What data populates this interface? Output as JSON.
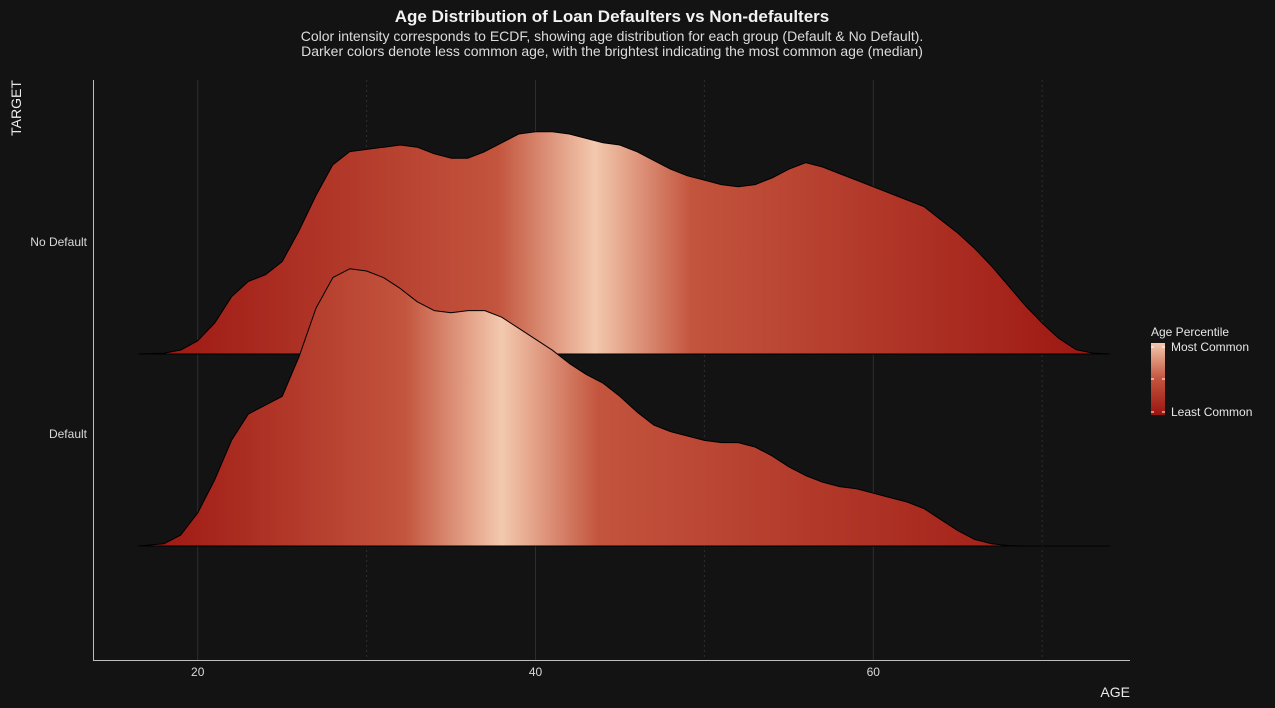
{
  "chart_data": {
    "type": "area",
    "subtype": "ridgeline",
    "title": "Age Distribution of Loan Defaulters vs Non-defaulters",
    "subtitle": [
      "Color intensity corresponds to ECDF, showing age distribution for each group (Default & No Default).",
      "Darker colors denote less common age, with the brightest indicating the most common age (median)"
    ],
    "xlabel": "AGE",
    "ylabel": "TARGET",
    "xlim": [
      13.8,
      75.2
    ],
    "x_ticks": [
      20,
      40,
      60
    ],
    "x_minor_gridlines": [
      30,
      50,
      70
    ],
    "grid": true,
    "categories": [
      "No Default",
      "Default"
    ],
    "series": [
      {
        "name": "No Default",
        "median": 43.5,
        "points": [
          [
            16.5,
            0.0
          ],
          [
            18,
            0.003
          ],
          [
            19,
            0.018
          ],
          [
            20,
            0.06
          ],
          [
            21,
            0.14
          ],
          [
            22,
            0.26
          ],
          [
            23,
            0.33
          ],
          [
            24,
            0.36
          ],
          [
            25,
            0.42
          ],
          [
            26,
            0.56
          ],
          [
            27,
            0.72
          ],
          [
            28,
            0.86
          ],
          [
            29,
            0.92
          ],
          [
            30,
            0.93
          ],
          [
            31,
            0.94
          ],
          [
            32,
            0.95
          ],
          [
            33,
            0.94
          ],
          [
            34,
            0.91
          ],
          [
            35,
            0.89
          ],
          [
            36,
            0.89
          ],
          [
            37,
            0.92
          ],
          [
            38,
            0.96
          ],
          [
            39,
            1.0
          ],
          [
            40,
            1.01
          ],
          [
            41,
            1.01
          ],
          [
            42,
            1.0
          ],
          [
            43,
            0.98
          ],
          [
            44,
            0.96
          ],
          [
            45,
            0.95
          ],
          [
            46,
            0.92
          ],
          [
            47,
            0.88
          ],
          [
            48,
            0.84
          ],
          [
            49,
            0.81
          ],
          [
            50,
            0.79
          ],
          [
            51,
            0.77
          ],
          [
            52,
            0.76
          ],
          [
            53,
            0.77
          ],
          [
            54,
            0.8
          ],
          [
            55,
            0.84
          ],
          [
            56,
            0.87
          ],
          [
            57,
            0.85
          ],
          [
            58,
            0.82
          ],
          [
            59,
            0.79
          ],
          [
            60,
            0.76
          ],
          [
            61,
            0.73
          ],
          [
            62,
            0.7
          ],
          [
            63,
            0.67
          ],
          [
            64,
            0.61
          ],
          [
            65,
            0.55
          ],
          [
            66,
            0.48
          ],
          [
            67,
            0.4
          ],
          [
            68,
            0.31
          ],
          [
            69,
            0.22
          ],
          [
            70,
            0.14
          ],
          [
            71,
            0.07
          ],
          [
            72,
            0.02
          ],
          [
            73,
            0.004
          ],
          [
            74,
            0.0
          ]
        ]
      },
      {
        "name": "Default",
        "median": 38,
        "points": [
          [
            16.5,
            0.0
          ],
          [
            18,
            0.01
          ],
          [
            19,
            0.05
          ],
          [
            20,
            0.15
          ],
          [
            21,
            0.3
          ],
          [
            22,
            0.48
          ],
          [
            23,
            0.6
          ],
          [
            24,
            0.64
          ],
          [
            25,
            0.68
          ],
          [
            26,
            0.86
          ],
          [
            27,
            1.08
          ],
          [
            28,
            1.22
          ],
          [
            29,
            1.26
          ],
          [
            30,
            1.25
          ],
          [
            31,
            1.22
          ],
          [
            32,
            1.17
          ],
          [
            33,
            1.11
          ],
          [
            34,
            1.07
          ],
          [
            35,
            1.06
          ],
          [
            36,
            1.07
          ],
          [
            37,
            1.07
          ],
          [
            38,
            1.04
          ],
          [
            39,
            0.99
          ],
          [
            40,
            0.94
          ],
          [
            41,
            0.89
          ],
          [
            42,
            0.83
          ],
          [
            43,
            0.78
          ],
          [
            44,
            0.74
          ],
          [
            45,
            0.68
          ],
          [
            46,
            0.61
          ],
          [
            47,
            0.55
          ],
          [
            48,
            0.52
          ],
          [
            49,
            0.5
          ],
          [
            50,
            0.48
          ],
          [
            51,
            0.47
          ],
          [
            52,
            0.47
          ],
          [
            53,
            0.45
          ],
          [
            54,
            0.41
          ],
          [
            55,
            0.36
          ],
          [
            56,
            0.32
          ],
          [
            57,
            0.29
          ],
          [
            58,
            0.27
          ],
          [
            59,
            0.26
          ],
          [
            60,
            0.24
          ],
          [
            61,
            0.22
          ],
          [
            62,
            0.2
          ],
          [
            63,
            0.17
          ],
          [
            64,
            0.12
          ],
          [
            65,
            0.07
          ],
          [
            66,
            0.03
          ],
          [
            67,
            0.01
          ],
          [
            68,
            0.002
          ],
          [
            69,
            0.0
          ],
          [
            70,
            0.0
          ],
          [
            71,
            0.0
          ],
          [
            72,
            0.0
          ],
          [
            73,
            0.0
          ],
          [
            74,
            0.0
          ]
        ]
      }
    ],
    "legend": {
      "title": "Age Percentile",
      "labels": [
        "Most Common",
        "Least Common"
      ],
      "placement": "right"
    },
    "colors": {
      "background": "#131313",
      "least_common": "#9b1410",
      "mid": "#c3543d",
      "most_common": "#f3c9ae",
      "gridline": "#2e2e2e",
      "axis_line": "#bdbdbd",
      "outline": "#000000"
    }
  }
}
